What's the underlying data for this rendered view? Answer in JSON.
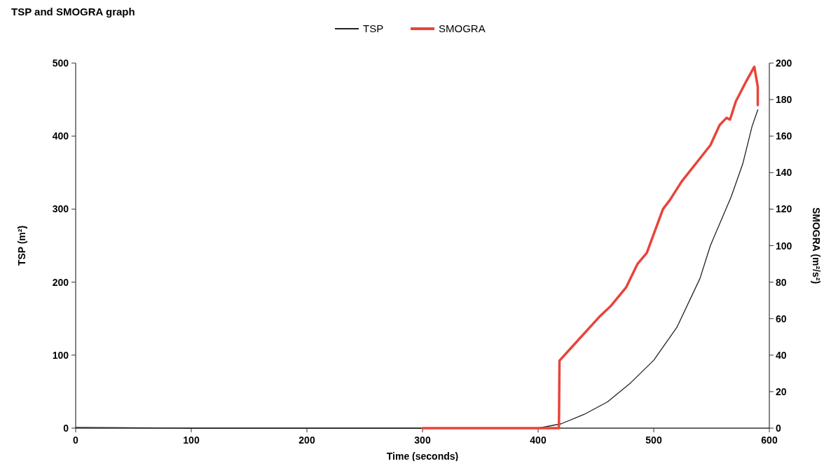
{
  "chart_data": {
    "type": "line",
    "title": "TSP and SMOGRA graph",
    "xlabel": "Time (seconds)",
    "ylabel": "TSP (m²)",
    "y2label": "SMOGRA (m²/s²)",
    "xlim": [
      0,
      600
    ],
    "xticks": [
      0,
      100,
      200,
      300,
      400,
      500,
      600
    ],
    "ylim": [
      0,
      500
    ],
    "yticks": [
      0,
      100,
      200,
      300,
      400,
      500
    ],
    "y2lim": [
      0,
      200
    ],
    "y2ticks": [
      0,
      20,
      40,
      60,
      80,
      100,
      120,
      140,
      160,
      180,
      200
    ],
    "legend": "top",
    "grid": false,
    "series": [
      {
        "name": "TSP",
        "color": "#222222",
        "x": [
          0,
          100,
          200,
          300,
          400,
          420,
          440,
          460,
          480,
          500,
          520,
          540,
          549,
          567,
          577,
          585,
          590
        ],
        "values": [
          1,
          0,
          0,
          0,
          0,
          6,
          19,
          36,
          62,
          93,
          138,
          205,
          250,
          317,
          362,
          413,
          436
        ]
      },
      {
        "name": "SMOGRA",
        "color": "#e8443a",
        "axis": "y2",
        "x": [
          300,
          350,
          400,
          418,
          418.5,
          430,
          453,
          463,
          476,
          486,
          494,
          508,
          514,
          524,
          549,
          557,
          563,
          566,
          571,
          580,
          587,
          590,
          590
        ],
        "values": [
          0,
          0,
          0,
          0,
          37,
          45,
          61,
          67,
          77,
          90,
          96,
          120,
          125,
          135,
          155,
          166,
          170,
          169,
          179,
          190,
          198,
          187,
          177
        ]
      }
    ]
  }
}
